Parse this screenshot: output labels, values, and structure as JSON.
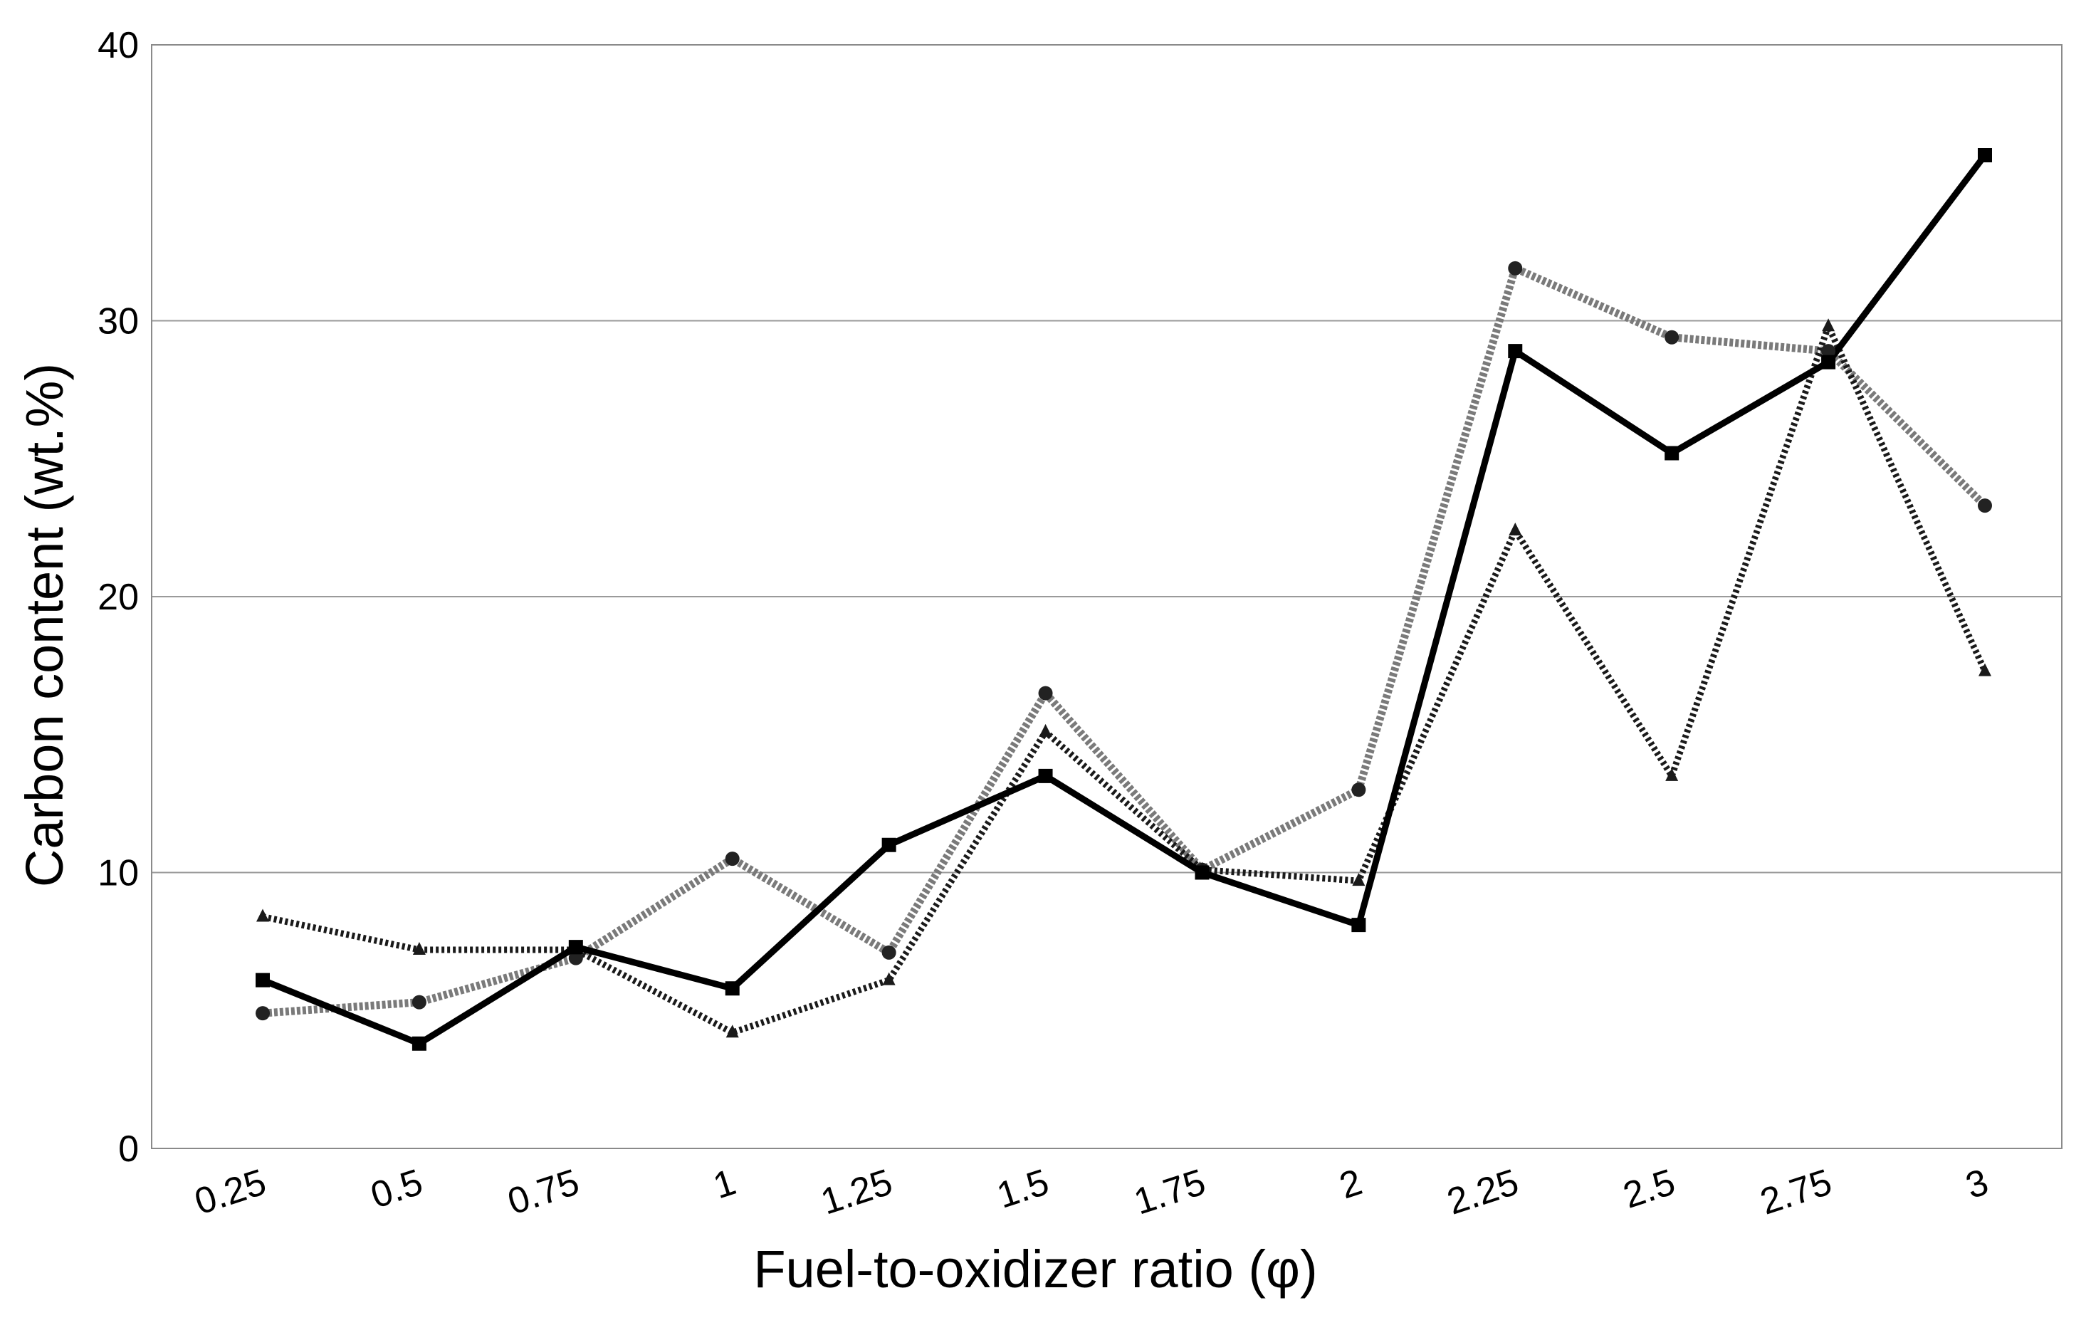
{
  "chart_data": {
    "type": "line",
    "title": "",
    "xlabel": "Fuel-to-oxidizer ratio (φ)",
    "ylabel": "Carbon content (wt.%)",
    "x": [
      0.25,
      0.5,
      0.75,
      1,
      1.25,
      1.5,
      1.75,
      2,
      2.25,
      2.5,
      2.75,
      3
    ],
    "x_tick_labels": [
      "0.25",
      "0.5",
      "0.75",
      "1",
      "1.25",
      "1.5",
      "1.75",
      "2",
      "2.25",
      "2.5",
      "2.75",
      "3"
    ],
    "ylim": [
      0,
      40
    ],
    "y_ticks": [
      0,
      10,
      20,
      30,
      40
    ],
    "y_tick_labels": [
      "0",
      "10",
      "20",
      "30",
      "40"
    ],
    "grid": "horizontal",
    "legend": "none",
    "series": [
      {
        "values": [
          6.1,
          3.8,
          7.3,
          5.8,
          11.0,
          13.5,
          10.0,
          8.1,
          28.9,
          25.2,
          28.5,
          36.0
        ],
        "color": "#000000",
        "line_style": "solid",
        "marker": "square"
      },
      {
        "values": [
          4.9,
          5.3,
          6.9,
          10.5,
          7.1,
          16.5,
          10.1,
          13.0,
          31.9,
          29.4,
          28.9,
          23.3
        ],
        "color": "#7a7a7a",
        "line_style": "dashed",
        "marker": "circle"
      },
      {
        "values": [
          8.4,
          7.2,
          7.2,
          4.2,
          6.1,
          15.1,
          10.1,
          9.7,
          22.4,
          13.5,
          29.8,
          17.3
        ],
        "color": "#1a1a1a",
        "line_style": "dotted",
        "marker": "triangle"
      }
    ]
  }
}
